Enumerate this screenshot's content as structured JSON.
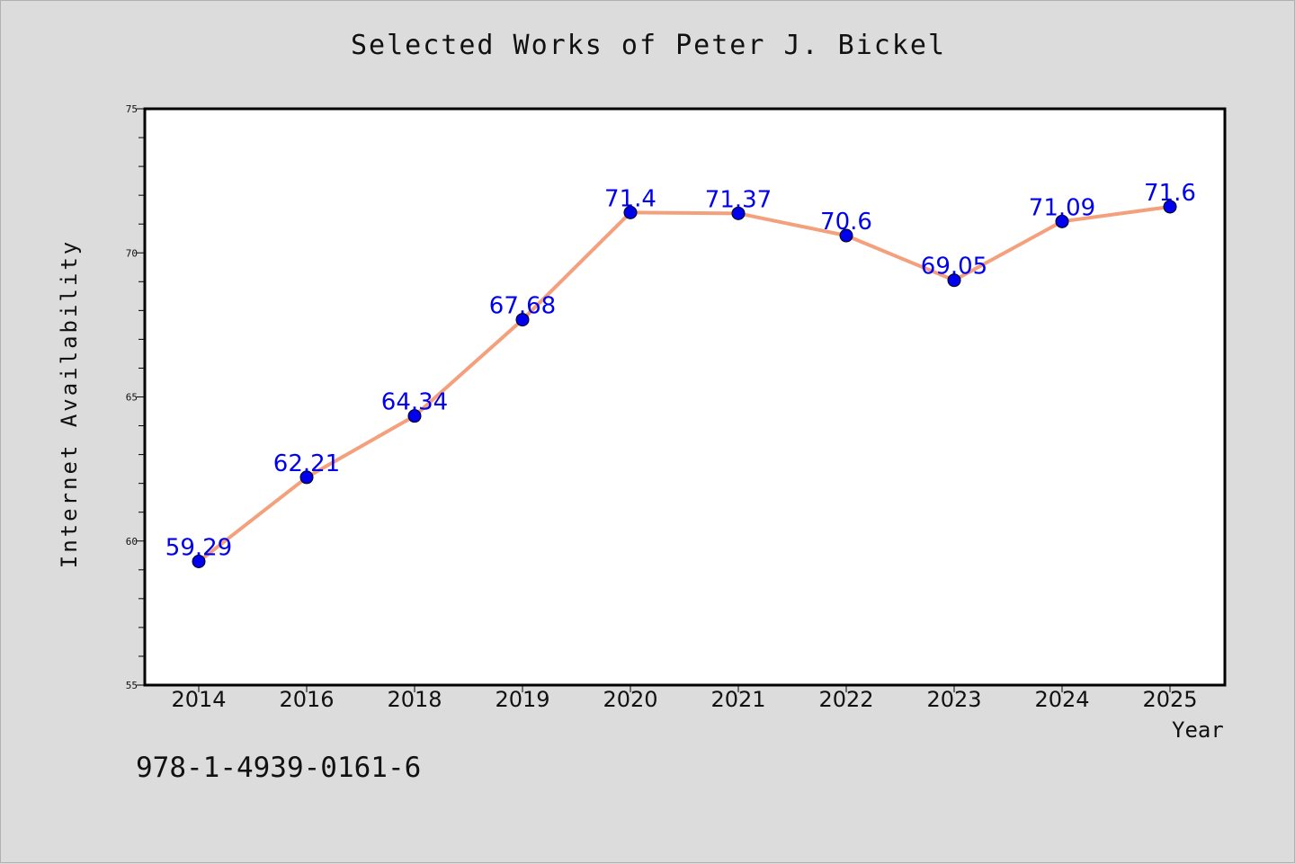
{
  "chart_data": {
    "type": "line",
    "title": "Selected Works of Peter J. Bickel",
    "xlabel": "Year",
    "ylabel": "Internet Availability",
    "categories": [
      "2014",
      "2016",
      "2018",
      "2019",
      "2020",
      "2021",
      "2022",
      "2023",
      "2024",
      "2025"
    ],
    "series": [
      {
        "values": [
          59.29,
          62.21,
          64.34,
          67.68,
          71.4,
          71.37,
          70.6,
          69.05,
          71.09,
          71.6
        ],
        "labels": [
          "59.29",
          "62.21",
          "64.34",
          "67.68",
          "71.4",
          "71.37",
          "70.6",
          "69.05",
          "71.09",
          "71.6"
        ]
      }
    ],
    "ylim": [
      55,
      75
    ],
    "yticks": [
      "55",
      "60",
      "65",
      "70",
      "75"
    ],
    "grid": false,
    "colors": {
      "line": "#f4a07c",
      "marker": "#0000ee",
      "data_label": "#0000ee",
      "plot_bg": "#ffffff",
      "page_bg": "#dcdcdc"
    }
  },
  "footer_text": "978-1-4939-0161-6"
}
